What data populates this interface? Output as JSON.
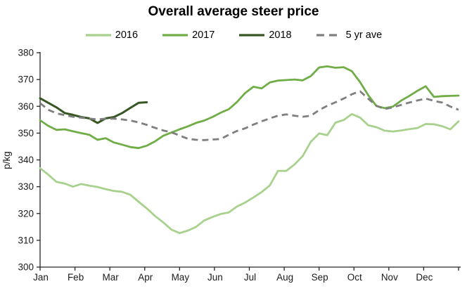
{
  "title": "Overall average steer price",
  "chart_data": {
    "type": "line",
    "title": "Overall average steer price",
    "xlabel": "",
    "ylabel": "p/kg",
    "ylim": [
      300,
      380
    ],
    "yticks": [
      300,
      310,
      320,
      330,
      340,
      350,
      360,
      370,
      380
    ],
    "x_categories": [
      "Jan",
      "Feb",
      "Mar",
      "Apr",
      "May",
      "Jun",
      "Jul",
      "Aug",
      "Sep",
      "Oct",
      "Nov",
      "Dec"
    ],
    "x_unit": "weekly points, Jan to Dec",
    "grid": false,
    "legend_position": "top",
    "axis_color": "#262626",
    "text_color": "#1a1a1a",
    "series": [
      {
        "name": "2016",
        "color": "#a9d18e",
        "style": "solid",
        "values": [
          336.9,
          334.5,
          331.8,
          331.2,
          330.0,
          331.0,
          330.4,
          329.9,
          329.1,
          328.4,
          328.1,
          327.0,
          324.4,
          321.9,
          319.1,
          316.7,
          314.0,
          312.7,
          313.6,
          315.0,
          317.4,
          318.7,
          319.8,
          320.4,
          322.6,
          324.1,
          326.0,
          328.0,
          330.5,
          335.9,
          335.9,
          338.3,
          341.4,
          346.8,
          349.9,
          349.2,
          353.9,
          354.9,
          357.1,
          355.8,
          352.9,
          352.2,
          350.9,
          350.6,
          351.0,
          351.5,
          351.9,
          353.4,
          353.3,
          352.6,
          351.4,
          354.4
        ]
      },
      {
        "name": "2017",
        "color": "#70ad47",
        "style": "solid",
        "values": [
          354.8,
          352.7,
          351.2,
          351.4,
          350.7,
          350.0,
          349.4,
          347.5,
          348.1,
          346.5,
          345.7,
          344.8,
          344.4,
          345.3,
          346.9,
          349.0,
          350.2,
          351.4,
          352.5,
          353.8,
          354.7,
          356.0,
          357.6,
          358.9,
          361.6,
          365.0,
          367.3,
          366.7,
          368.9,
          369.6,
          369.8,
          370.0,
          369.7,
          371.3,
          374.5,
          374.9,
          374.4,
          374.6,
          373.1,
          369.0,
          364.1,
          360.1,
          359.3,
          359.9,
          362.1,
          363.9,
          365.8,
          367.5,
          363.5,
          363.8,
          363.9,
          364.0
        ]
      },
      {
        "name": "2018",
        "color": "#375623",
        "style": "solid",
        "values": [
          363.0,
          361.3,
          359.6,
          357.5,
          356.8,
          356.0,
          355.5,
          353.8,
          355.5,
          356.0,
          357.5,
          359.4,
          361.3,
          361.5
        ]
      },
      {
        "name": "5 yr ave",
        "color": "#7f7f7f",
        "style": "dashed",
        "values": [
          361.2,
          358.7,
          357.4,
          356.7,
          356.1,
          355.8,
          355.4,
          355.1,
          355.4,
          355.4,
          355.1,
          354.7,
          354.0,
          353.1,
          352.0,
          351.0,
          350.3,
          349.1,
          347.9,
          347.5,
          347.4,
          347.6,
          347.8,
          349.4,
          350.8,
          351.8,
          353.2,
          354.4,
          355.5,
          356.5,
          357.0,
          356.5,
          356.1,
          356.5,
          358.6,
          360.2,
          361.5,
          362.9,
          364.5,
          365.6,
          362.8,
          360.2,
          359.0,
          359.6,
          360.5,
          361.4,
          362.2,
          362.9,
          362.0,
          361.4,
          359.9,
          358.7
        ]
      }
    ]
  }
}
